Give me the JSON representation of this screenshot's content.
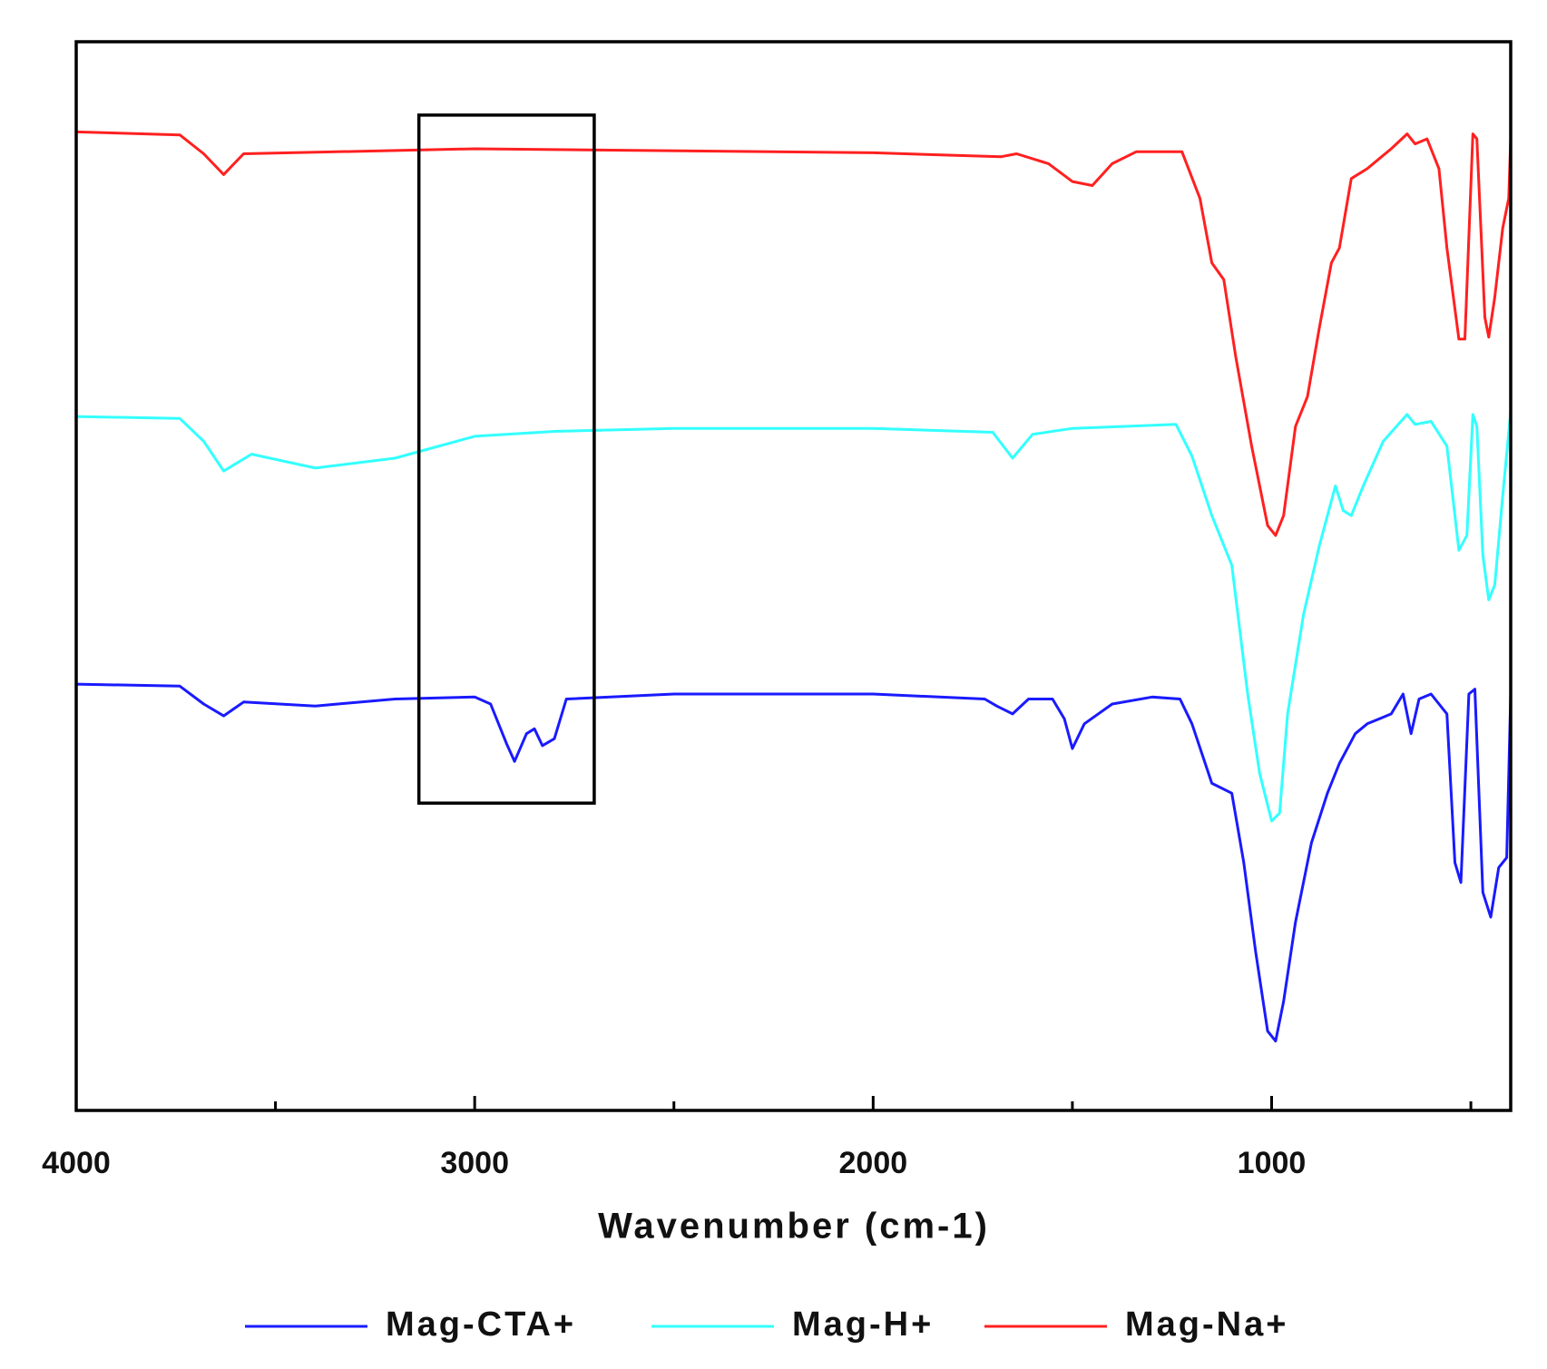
{
  "chart_data": {
    "type": "line",
    "xlabel": "Wavenumber (cm-1)",
    "xlim": [
      4000,
      400
    ],
    "ylim": [
      0,
      1078
    ],
    "xticks": [
      4000,
      3000,
      2000,
      1000
    ],
    "xminor_ticks": [
      3500,
      2500,
      1500,
      500
    ],
    "legend": "bottom",
    "highlight": {
      "x": [
        3140,
        2700
      ],
      "y": [
        310,
        1004
      ]
    },
    "series": [
      {
        "name": "Mag-CTA+",
        "color": "#1a1aff",
        "x": [
          4000,
          3740,
          3680,
          3630,
          3580,
          3400,
          3200,
          3000,
          2960,
          2920,
          2900,
          2870,
          2850,
          2830,
          2800,
          2770,
          2500,
          2000,
          1720,
          1690,
          1650,
          1610,
          1550,
          1520,
          1500,
          1470,
          1400,
          1300,
          1230,
          1200,
          1150,
          1100,
          1070,
          1040,
          1010,
          990,
          970,
          940,
          900,
          860,
          830,
          790,
          760,
          700,
          670,
          650,
          630,
          600,
          560,
          540,
          525,
          505,
          490,
          470,
          450,
          430,
          410,
          400
        ],
        "values": [
          430,
          428,
          410,
          398,
          412,
          408,
          415,
          417,
          410,
          370,
          352,
          380,
          385,
          368,
          375,
          415,
          420,
          420,
          415,
          408,
          400,
          415,
          415,
          395,
          365,
          390,
          410,
          417,
          415,
          390,
          330,
          320,
          250,
          160,
          80,
          70,
          110,
          190,
          270,
          320,
          350,
          380,
          390,
          400,
          420,
          380,
          415,
          420,
          400,
          250,
          230,
          420,
          425,
          220,
          195,
          245,
          255,
          420
        ]
      },
      {
        "name": "Mag-H+",
        "color": "#33ffff",
        "x": [
          4000,
          3740,
          3680,
          3630,
          3560,
          3400,
          3200,
          3000,
          2800,
          2500,
          2000,
          1700,
          1650,
          1600,
          1500,
          1240,
          1200,
          1150,
          1100,
          1060,
          1030,
          1000,
          980,
          960,
          920,
          880,
          840,
          820,
          800,
          770,
          720,
          660,
          640,
          600,
          560,
          530,
          510,
          495,
          485,
          470,
          455,
          440,
          420,
          400
        ],
        "values": [
          700,
          698,
          675,
          645,
          662,
          648,
          658,
          680,
          685,
          688,
          688,
          684,
          658,
          682,
          688,
          692,
          660,
          600,
          550,
          420,
          340,
          292,
          300,
          400,
          500,
          570,
          630,
          605,
          600,
          630,
          675,
          702,
          692,
          695,
          670,
          565,
          580,
          702,
          690,
          560,
          515,
          530,
          620,
          705
        ]
      },
      {
        "name": "Mag-Na+",
        "color": "#ff2020",
        "x": [
          4000,
          3740,
          3680,
          3630,
          3580,
          3000,
          2000,
          1680,
          1640,
          1560,
          1500,
          1450,
          1400,
          1340,
          1225,
          1180,
          1150,
          1120,
          1090,
          1050,
          1010,
          990,
          970,
          940,
          910,
          880,
          850,
          830,
          800,
          760,
          700,
          660,
          640,
          610,
          580,
          560,
          530,
          515,
          495,
          485,
          465,
          455,
          440,
          420,
          405,
          400
        ],
        "values": [
          987,
          984,
          965,
          944,
          965,
          970,
          966,
          962,
          965,
          955,
          937,
          933,
          955,
          967,
          967,
          920,
          855,
          838,
          760,
          670,
          590,
          580,
          600,
          690,
          720,
          790,
          855,
          870,
          940,
          950,
          970,
          985,
          975,
          980,
          950,
          870,
          778,
          778,
          985,
          980,
          800,
          780,
          820,
          890,
          920,
          980
        ]
      }
    ]
  }
}
